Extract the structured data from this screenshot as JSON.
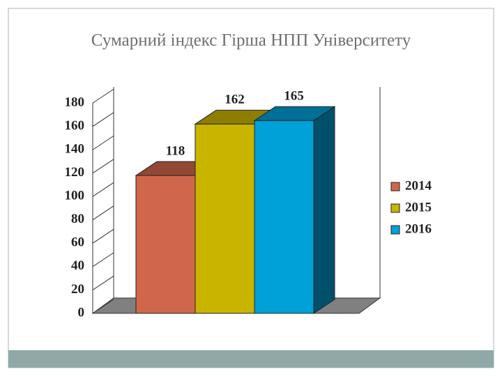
{
  "chart_data": {
    "type": "bar3d",
    "title": "Сумарний індекс Гірша НПП Університету",
    "series": [
      {
        "name": "2014",
        "color": "#d0674a",
        "values": [
          118
        ]
      },
      {
        "name": "2015",
        "color": "#c9b400",
        "values": [
          162
        ]
      },
      {
        "name": "2016",
        "color": "#00a0d8",
        "values": [
          165
        ]
      }
    ],
    "ylim": [
      0,
      180
    ],
    "yticks": [
      0,
      20,
      40,
      60,
      80,
      100,
      120,
      140,
      160,
      180
    ],
    "legend": "right"
  }
}
